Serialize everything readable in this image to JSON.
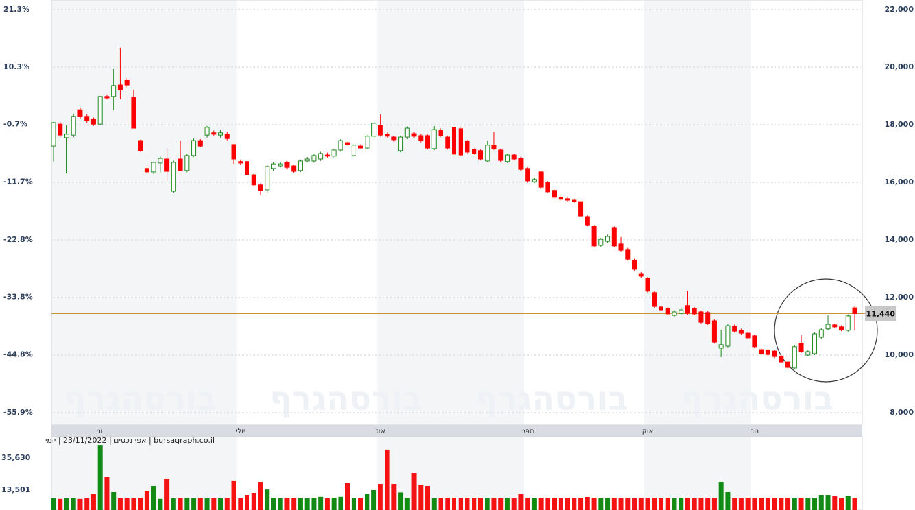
{
  "chart_data": {
    "type": "candlestick",
    "info_line": "bursagraph.co.il | אפי נכסים | 23/11/2022 | יומי",
    "watermark": "בורסהגרף",
    "up_color": "#1e8a1e",
    "down_color": "#ff0000",
    "grid": true,
    "categories": [
      null,
      null,
      null,
      null,
      null,
      null,
      null,
      "יוני",
      null,
      null,
      null,
      null,
      null,
      null,
      null,
      null,
      null,
      null,
      null,
      null,
      null,
      null,
      null,
      null,
      null,
      null,
      null,
      null,
      "יולי",
      null,
      null,
      null,
      null,
      null,
      null,
      null,
      null,
      null,
      null,
      null,
      null,
      null,
      null,
      null,
      null,
      null,
      null,
      null,
      null,
      "אוג",
      null,
      null,
      null,
      null,
      null,
      null,
      null,
      null,
      null,
      null,
      null,
      null,
      null,
      null,
      null,
      null,
      null,
      null,
      null,
      null,
      null,
      "ספט",
      null,
      null,
      null,
      null,
      null,
      null,
      null,
      null,
      null,
      null,
      null,
      null,
      null,
      null,
      null,
      null,
      null,
      "אוק",
      null,
      null,
      null,
      null,
      null,
      null,
      null,
      null,
      null,
      null,
      null,
      null,
      null,
      null,
      null,
      "נוב",
      null,
      null,
      null,
      null,
      null,
      null,
      null,
      null,
      null,
      null,
      null,
      null,
      null,
      null,
      null
    ],
    "open": [
      17260,
      18020,
      17550,
      17640,
      18520,
      18290,
      18190,
      18020,
      18980,
      18980,
      19380,
      19550,
      18950,
      17450,
      16480,
      16360,
      16670,
      16810,
      15690,
      16810,
      16410,
      16930,
      17450,
      17640,
      17720,
      17640,
      17670,
      17310,
      16720,
      16720,
      16260,
      15910,
      15740,
      16480,
      16570,
      16690,
      16570,
      16410,
      16740,
      16740,
      16810,
      16950,
      16910,
      17120,
      17380,
      16930,
      17260,
      17190,
      17600,
      17980,
      17670,
      17570,
      17100,
      17570,
      17690,
      17620,
      17620,
      17170,
      17810,
      17570,
      17910,
      17860,
      17430,
      17140,
      17100,
      16740,
      17290,
      17120,
      16720,
      16950,
      16830,
      16480,
      16020,
      16360,
      16000,
      15720,
      15480,
      15430,
      15380,
      15330,
      14810,
      14480,
      13810,
      13950,
      14430,
      13860,
      13670,
      13290,
      12830,
      12670,
      12170,
      11670,
      11620,
      11380,
      11450,
      11720,
      11620,
      11500,
      11480,
      11190,
      10240,
      10310,
      11000,
      10860,
      10760,
      10670,
      10190,
      10170,
      10140,
      9950,
      9760,
      9550,
      10410,
      10000,
      10050,
      10620,
      10910,
      11050,
      10980,
      10860,
      11640
    ],
    "high": [
      18100,
      18100,
      17980,
      18380,
      18600,
      18360,
      18250,
      18990,
      19050,
      19950,
      20670,
      19620,
      19210,
      17480,
      16550,
      16720,
      16900,
      17140,
      16750,
      17450,
      17000,
      17520,
      17500,
      17960,
      17800,
      17820,
      17760,
      17330,
      16790,
      16740,
      16300,
      15970,
      16620,
      16700,
      16690,
      16740,
      16610,
      16790,
      16880,
      16990,
      17060,
      17030,
      17170,
      17500,
      17460,
      17340,
      17330,
      17650,
      18100,
      18360,
      17730,
      17620,
      17620,
      17940,
      17760,
      17680,
      17660,
      17950,
      17880,
      17620,
      17930,
      17930,
      17480,
      17200,
      17140,
      17450,
      17760,
      17170,
      17000,
      17000,
      16880,
      16520,
      16160,
      16400,
      16050,
      15760,
      15560,
      15500,
      15440,
      15370,
      14850,
      14520,
      14070,
      14180,
      14470,
      14100,
      13720,
      13340,
      12880,
      12710,
      12220,
      11720,
      11670,
      11560,
      11620,
      12240,
      11670,
      11550,
      11530,
      11240,
      10880,
      11070,
      11060,
      10920,
      10810,
      10720,
      10240,
      10220,
      10190,
      10000,
      9810,
      10340,
      10690,
      10170,
      10790,
      10930,
      11380,
      11100,
      11030,
      11410,
      11690
    ],
    "low": [
      16720,
      17560,
      16310,
      17560,
      18210,
      18060,
      17960,
      17990,
      18880,
      18520,
      18880,
      19300,
      17880,
      17060,
      16300,
      16290,
      16350,
      16000,
      15640,
      16410,
      16350,
      16880,
      17220,
      17550,
      17620,
      17550,
      17460,
      16640,
      16620,
      16200,
      15850,
      15550,
      15640,
      16400,
      16520,
      16450,
      16330,
      16360,
      16690,
      16680,
      16740,
      16860,
      16850,
      17060,
      17260,
      16880,
      17140,
      17140,
      17550,
      17590,
      17540,
      17420,
      17050,
      17500,
      17550,
      17390,
      17140,
      17120,
      17560,
      17140,
      16930,
      16900,
      16990,
      16950,
      16760,
      16690,
      17120,
      16700,
      16670,
      16760,
      16400,
      15990,
      15980,
      15780,
      15620,
      15430,
      15360,
      15330,
      15280,
      14780,
      14470,
      13740,
      13760,
      13900,
      13740,
      13590,
      13280,
      12930,
      12690,
      12170,
      11640,
      11520,
      11380,
      11330,
      11400,
      11400,
      11380,
      11090,
      11050,
      10400,
      9930,
      10260,
      10780,
      10710,
      10550,
      10240,
      10000,
      9970,
      9900,
      9710,
      9520,
      9500,
      10070,
      9950,
      10000,
      10570,
      10860,
      10930,
      10830,
      10810,
      10860
    ],
    "close": [
      18070,
      17640,
      17670,
      18290,
      18290,
      18140,
      18020,
      18980,
      18930,
      19360,
      19210,
      19380,
      17880,
      17100,
      16360,
      16690,
      16830,
      16380,
      16690,
      16410,
      16930,
      17450,
      17260,
      17910,
      17670,
      17720,
      17520,
      16810,
      16670,
      16260,
      15910,
      15720,
      16550,
      16640,
      16640,
      16520,
      16380,
      16740,
      16810,
      16930,
      17000,
      16910,
      17120,
      17450,
      17310,
      17290,
      17190,
      17600,
      18050,
      17640,
      17600,
      17480,
      17570,
      17880,
      17600,
      17450,
      17190,
      17830,
      17620,
      17190,
      16980,
      16950,
      17050,
      17000,
      16810,
      17290,
      17170,
      16760,
      16950,
      16810,
      16450,
      16050,
      16100,
      15830,
      15670,
      15480,
      15410,
      15380,
      15330,
      14830,
      14520,
      13790,
      14020,
      14120,
      13790,
      13640,
      13330,
      12980,
      12740,
      12220,
      11690,
      11570,
      11430,
      11500,
      11570,
      11450,
      11430,
      11140,
      11100,
      10450,
      10360,
      11020,
      10830,
      10760,
      10600,
      10290,
      10050,
      10020,
      9950,
      9760,
      9570,
      10290,
      10120,
      10120,
      10740,
      10880,
      11070,
      10980,
      10880,
      11360,
      11440
    ],
    "ylim": [
      8000,
      22000
    ],
    "yticks": [
      {
        "value": 8000,
        "label": "8,000"
      },
      {
        "value": 10000,
        "label": "10,000"
      },
      {
        "value": 12000,
        "label": "12,000"
      },
      {
        "value": 14000,
        "label": "14,000"
      },
      {
        "value": 16000,
        "label": "16,000"
      },
      {
        "value": 18000,
        "label": "18,000"
      },
      {
        "value": 20000,
        "label": "20,000"
      },
      {
        "value": 22000,
        "label": "22,000"
      }
    ],
    "y2lim": [
      -55.9,
      21.3
    ],
    "y2ticks": [
      {
        "value": -55.9,
        "label": "-55.9%"
      },
      {
        "value": -44.8,
        "label": "-44.8%"
      },
      {
        "value": -33.8,
        "label": "-33.8%"
      },
      {
        "value": -22.8,
        "label": "-22.8%"
      },
      {
        "value": -11.7,
        "label": "-11.7%"
      },
      {
        "value": -0.7,
        "label": "-0.7%"
      },
      {
        "value": 10.3,
        "label": "10.3%"
      },
      {
        "value": 21.3,
        "label": "21.3%"
      }
    ],
    "last_price": {
      "value": 11440,
      "label": "11,440"
    },
    "volume": {
      "values": [
        8000,
        7600,
        8000,
        8000,
        7600,
        8000,
        11200,
        44500,
        22500,
        12200,
        8000,
        8000,
        8000,
        8400,
        13100,
        16400,
        7600,
        21100,
        8000,
        8000,
        8400,
        8000,
        8400,
        8000,
        8000,
        8000,
        8400,
        20200,
        8000,
        10300,
        11700,
        19200,
        14000,
        8400,
        8000,
        8400,
        8000,
        8400,
        8000,
        8400,
        9000,
        8000,
        8400,
        9000,
        18300,
        8400,
        8000,
        11200,
        13600,
        17800,
        41300,
        17800,
        12000,
        8400,
        25300,
        17300,
        16400,
        8000,
        8400,
        8000,
        8400,
        8000,
        8400,
        8000,
        8400,
        8000,
        8400,
        8000,
        8400,
        8000,
        10800,
        8400,
        8000,
        8400,
        8000,
        8400,
        8000,
        8400,
        8000,
        8400,
        8900,
        8400,
        8000,
        8400,
        8400,
        8000,
        8400,
        8000,
        8400,
        8000,
        8400,
        8000,
        8400,
        8000,
        8400,
        8400,
        8000,
        8400,
        8000,
        8400,
        19200,
        12200,
        8400,
        8000,
        8400,
        8000,
        8400,
        8000,
        8400,
        8000,
        8400,
        8000,
        8400,
        8000,
        8400,
        10300,
        10300,
        9400,
        8000,
        9400,
        8400
      ],
      "ylim": [
        0,
        45000
      ],
      "yticks": [
        {
          "value": 13501,
          "label": "13,501"
        },
        {
          "value": 35630,
          "label": "35,630"
        }
      ]
    }
  }
}
